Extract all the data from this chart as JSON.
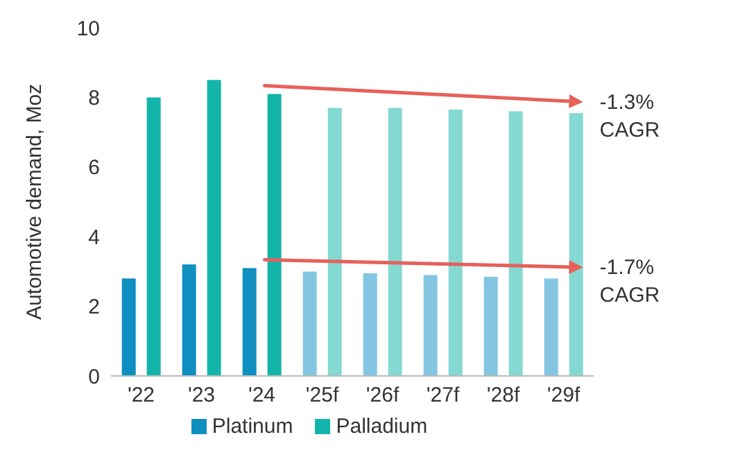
{
  "chart_data": {
    "type": "bar",
    "ylabel": "Automotive demand, Moz",
    "categories": [
      "'22",
      "'23",
      "'24",
      "'25f",
      "'26f",
      "'27f",
      "'28f",
      "'29f"
    ],
    "series": [
      {
        "name": "Platinum",
        "color": "#0e8fc0",
        "colors": [
          "#0e8fc0",
          "#0e8fc0",
          "#0e8fc0",
          "#84c6e2",
          "#84c6e2",
          "#84c6e2",
          "#84c6e2",
          "#84c6e2"
        ],
        "values": [
          2.8,
          3.2,
          3.1,
          3.0,
          2.95,
          2.9,
          2.85,
          2.8
        ]
      },
      {
        "name": "Palladium",
        "color": "#13b5aa",
        "colors": [
          "#13b5aa",
          "#13b5aa",
          "#13b5aa",
          "#84d9d2",
          "#84d9d2",
          "#84d9d2",
          "#84d9d2",
          "#84d9d2"
        ],
        "values": [
          8.0,
          8.5,
          8.1,
          7.7,
          7.7,
          7.65,
          7.6,
          7.55
        ]
      }
    ],
    "ylim": [
      0,
      10
    ],
    "yticks": [
      0,
      2,
      4,
      6,
      8,
      10
    ],
    "grid": false,
    "legend": "bottom",
    "annotations": [
      {
        "text": "-1.3% CAGR",
        "x": "'29f",
        "y": 7.55
      },
      {
        "text": "-1.7% CAGR",
        "x": "'29f",
        "y": 2.8
      }
    ]
  }
}
